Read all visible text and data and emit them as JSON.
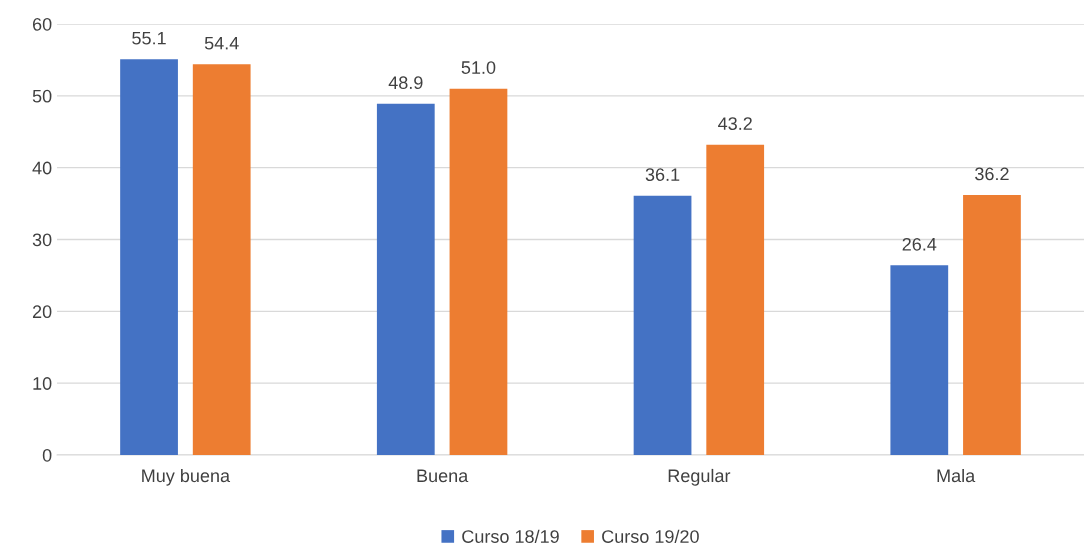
{
  "chart_data": {
    "type": "bar",
    "categories": [
      "Muy buena",
      "Buena",
      "Regular",
      "Mala"
    ],
    "series": [
      {
        "name": "Curso 18/19",
        "color": "#4472c4",
        "values": [
          55.1,
          48.9,
          36.1,
          26.4
        ],
        "value_labels": [
          "55.1",
          "48.9",
          "36.1",
          "26.4"
        ]
      },
      {
        "name": "Curso 19/20",
        "color": "#ed7d31",
        "values": [
          54.4,
          51.0,
          43.2,
          36.2
        ],
        "value_labels": [
          "54.4",
          "51.0",
          "43.2",
          "36.2"
        ]
      }
    ],
    "ylim": [
      0,
      60
    ],
    "yticks": [
      0,
      10,
      20,
      30,
      40,
      50,
      60
    ],
    "grid": "y",
    "legend": "bottom"
  }
}
